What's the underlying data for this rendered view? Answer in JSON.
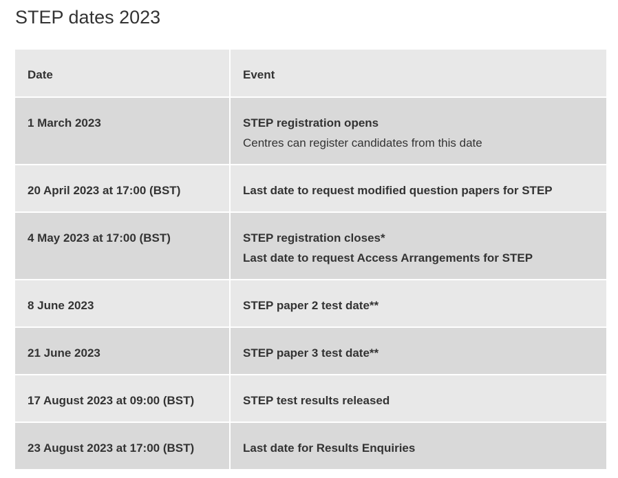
{
  "page": {
    "title": "STEP dates 2023"
  },
  "table": {
    "headers": {
      "date": "Date",
      "event": "Event"
    },
    "rows": [
      {
        "date": "1 March 2023",
        "event_main": "STEP registration opens",
        "event_sub": "Centres can register candidates from this date"
      },
      {
        "date": "20 April 2023 at 17:00 (BST)",
        "event_main": "Last date to request modified question papers for STEP"
      },
      {
        "date": "4 May 2023 at 17:00 (BST)",
        "event_main": "STEP registration closes*",
        "event_main_2": "Last date to request Access Arrangements for STEP"
      },
      {
        "date": "8 June 2023",
        "event_main": "STEP paper 2 test date**"
      },
      {
        "date": "21 June 2023",
        "event_main": "STEP paper 3 test date**"
      },
      {
        "date": "17 August 2023 at 09:00 (BST)",
        "event_main": "STEP test results released"
      },
      {
        "date": "23 August 2023 at 17:00 (BST)",
        "event_main": "Last date for Results Enquiries"
      }
    ]
  },
  "colors": {
    "header_row": "#e8e8e8",
    "row_dark": "#d9d9d9",
    "row_light": "#e8e8e8",
    "text": "#333333"
  }
}
